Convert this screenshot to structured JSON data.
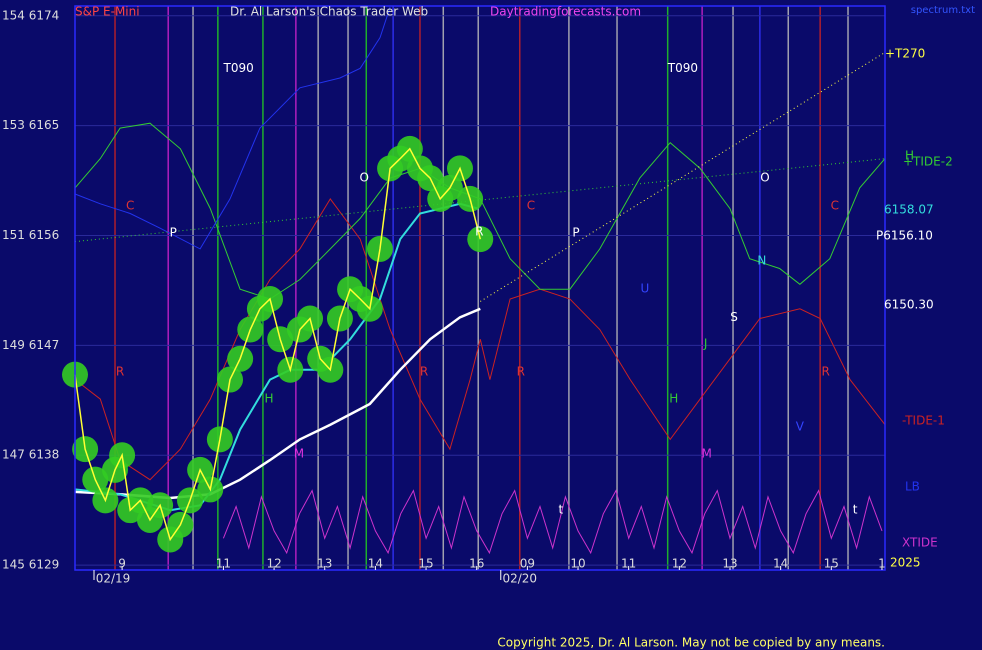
{
  "chart_data": {
    "type": "line",
    "title": "S&P E-Mini",
    "subtitle": "Dr. Al Larson's Chaos Trader Web",
    "site": "Daytradingforecasts.com",
    "source_file": "spectrum.txt",
    "copyright": "Copyright 2025, Dr. Al Larson. May not be copied by any means.",
    "xlim": [
      0.07,
      16.06
    ],
    "ylim": [
      6128.6,
      6174.8
    ],
    "grid": true,
    "yticks": [
      {
        "value": 6174,
        "label": "154 6174"
      },
      {
        "value": 6165,
        "label": "153 6165"
      },
      {
        "value": 6156,
        "label": "151 6156"
      },
      {
        "value": 6147,
        "label": "149 6147"
      },
      {
        "value": 6138,
        "label": "147 6138"
      },
      {
        "value": 6129,
        "label": "145 6129"
      }
    ],
    "xticks": [
      {
        "value": 1,
        "label": "9"
      },
      {
        "value": 3,
        "label": "11"
      },
      {
        "value": 4,
        "label": "12"
      },
      {
        "value": 5,
        "label": "13"
      },
      {
        "value": 6,
        "label": "14"
      },
      {
        "value": 7,
        "label": "15"
      },
      {
        "value": 8,
        "label": "16"
      },
      {
        "value": 9,
        "label": "09"
      },
      {
        "value": 10,
        "label": "10"
      },
      {
        "value": 11,
        "label": "11"
      },
      {
        "value": 12,
        "label": "12"
      },
      {
        "value": 13,
        "label": "13"
      },
      {
        "value": 14,
        "label": "14"
      },
      {
        "value": 15,
        "label": "15"
      },
      {
        "value": 16,
        "label": "1"
      }
    ],
    "date_labels": [
      {
        "label": "02/19",
        "x": 0.82
      },
      {
        "label": "02/20",
        "x": 8.85
      }
    ],
    "vlines": [
      {
        "x": 0.86,
        "color": "#cc2222"
      },
      {
        "x": 1.91,
        "color": "#cc22cc"
      },
      {
        "x": 2.4,
        "color": "#bbbbbb"
      },
      {
        "x": 2.89,
        "color": "#22cc22"
      },
      {
        "x": 3.78,
        "color": "#22cc22"
      },
      {
        "x": 4.43,
        "color": "#cc22cc"
      },
      {
        "x": 4.87,
        "color": "#bbbbbb"
      },
      {
        "x": 5.46,
        "color": "#bbbbbb"
      },
      {
        "x": 5.82,
        "color": "#22cc22"
      },
      {
        "x": 6.35,
        "color": "#3333ff"
      },
      {
        "x": 6.88,
        "color": "#cc2222"
      },
      {
        "x": 7.34,
        "color": "#bbbbbb"
      },
      {
        "x": 8.03,
        "color": "#bbbbbb"
      },
      {
        "x": 8.85,
        "color": "#cc2222"
      },
      {
        "x": 9.82,
        "color": "#bbbbbb"
      },
      {
        "x": 10.77,
        "color": "#bbbbbb"
      },
      {
        "x": 11.77,
        "color": "#22cc22"
      },
      {
        "x": 12.45,
        "color": "#cc22cc"
      },
      {
        "x": 13.06,
        "color": "#bbbbbb"
      },
      {
        "x": 13.59,
        "color": "#3333ff"
      },
      {
        "x": 14.15,
        "color": "#bbbbbb"
      },
      {
        "x": 14.78,
        "color": "#cc2222"
      },
      {
        "x": 15.33,
        "color": "#bbbbbb"
      }
    ],
    "series": [
      {
        "name": "-TIDE-1",
        "color": "#cc2222",
        "x": [
          0.07,
          0.57,
          0.96,
          1.55,
          2.15,
          2.74,
          3.33,
          3.92,
          4.51,
          5.11,
          5.7,
          6.29,
          6.88,
          7.47,
          7.87,
          8.07,
          8.26,
          8.66,
          9.25,
          9.84,
          10.43,
          11.03,
          11.82,
          12.41,
          13.0,
          13.59,
          14.38,
          14.78,
          15.37,
          16.06
        ],
        "values": [
          6144.2,
          6142.6,
          6137.6,
          6136.0,
          6138.5,
          6142.6,
          6148.3,
          6152.4,
          6154.9,
          6159.0,
          6155.7,
          6148.3,
          6142.6,
          6138.5,
          6144.2,
          6147.5,
          6144.2,
          6150.8,
          6151.6,
          6150.8,
          6148.3,
          6144.2,
          6139.3,
          6142.6,
          6145.9,
          6149.2,
          6150.0,
          6149.2,
          6144.2,
          6140.5
        ]
      },
      {
        "name": "+TIDE-2",
        "color": "#33cc33",
        "x": [
          0.07,
          0.57,
          0.96,
          1.55,
          2.15,
          2.74,
          3.33,
          3.92,
          4.51,
          5.11,
          5.7,
          6.29,
          6.88,
          7.47,
          8.07,
          8.66,
          9.25,
          9.84,
          10.43,
          11.22,
          11.82,
          12.41,
          13.0,
          13.39,
          13.98,
          14.38,
          14.97,
          15.56,
          16.06
        ],
        "values": [
          6159.9,
          6162.3,
          6164.8,
          6165.2,
          6163.1,
          6158.2,
          6151.6,
          6150.8,
          6152.4,
          6154.9,
          6157.4,
          6160.7,
          6161.5,
          6159.9,
          6159.0,
          6154.1,
          6151.6,
          6151.6,
          6154.9,
          6160.7,
          6163.6,
          6161.5,
          6158.2,
          6154.1,
          6153.3,
          6152.0,
          6154.1,
          6159.9,
          6162.3
        ]
      },
      {
        "name": "LB",
        "color": "#2233ee",
        "x": [
          0.07,
          0.57,
          1.16,
          1.75,
          2.54,
          3.13,
          3.72,
          4.51,
          5.3,
          5.7,
          6.09,
          6.29
        ],
        "values": [
          6159.4,
          6158.6,
          6157.8,
          6156.6,
          6154.9,
          6159.0,
          6164.8,
          6168.1,
          6168.9,
          6169.7,
          6172.2,
          6174.7
        ]
      },
      {
        "name": "XTIDE",
        "color": "#cc33cc",
        "x": [
          3.0,
          3.25,
          3.5,
          3.75,
          4.0,
          4.25,
          4.5,
          4.75,
          5.0,
          5.25,
          5.5,
          5.75,
          6.0,
          6.25,
          6.5,
          6.75,
          7.0,
          7.25,
          7.5,
          7.75,
          8.0,
          8.25,
          8.5,
          8.75,
          9.0,
          9.25,
          9.5,
          9.75,
          10.0,
          10.25,
          10.5,
          10.75,
          11.0,
          11.25,
          11.5,
          11.75,
          12.0,
          12.25,
          12.5,
          12.75,
          13.0,
          13.25,
          13.5,
          13.75,
          14.0,
          14.25,
          14.5,
          14.75,
          15.0,
          15.25,
          15.5,
          15.75,
          16.0
        ],
        "values": [
          6131.2,
          6133.8,
          6130.4,
          6134.6,
          6131.8,
          6130.0,
          6133.2,
          6135.1,
          6131.2,
          6133.8,
          6130.4,
          6134.6,
          6131.8,
          6130.0,
          6133.2,
          6135.1,
          6131.2,
          6133.8,
          6130.4,
          6134.6,
          6131.8,
          6130.0,
          6133.2,
          6135.1,
          6131.2,
          6133.8,
          6130.4,
          6134.6,
          6131.8,
          6130.0,
          6133.2,
          6135.1,
          6131.2,
          6133.8,
          6130.4,
          6134.6,
          6131.8,
          6130.0,
          6133.2,
          6135.1,
          6131.2,
          6133.8,
          6130.4,
          6134.6,
          6131.8,
          6130.0,
          6133.2,
          6135.1,
          6131.2,
          6133.8,
          6130.4,
          6134.6,
          6131.8
        ]
      },
      {
        "name": "+T270",
        "color": "#ffff44",
        "style": "dotted",
        "x": [
          8.07,
          16.06
        ],
        "values": [
          6150.6,
          6171.0
        ]
      },
      {
        "name": "H",
        "color": "#33cc33",
        "style": "dotted",
        "x": [
          0.07,
          16.06
        ],
        "values": [
          6155.5,
          6162.3
        ]
      },
      {
        "name": "6150.30",
        "color": "#ffffff",
        "width": 2.5,
        "x": [
          0.07,
          0.96,
          1.95,
          2.74,
          3.33,
          3.92,
          4.51,
          5.11,
          5.89,
          6.49,
          7.08,
          7.67,
          8.07
        ],
        "values": [
          6135.0,
          6134.8,
          6134.5,
          6134.8,
          6136.0,
          6137.6,
          6139.3,
          6140.5,
          6142.2,
          6145.0,
          6147.5,
          6149.3,
          6150.0
        ]
      },
      {
        "name": "6158.07",
        "color": "#33dddd",
        "width": 2,
        "x": [
          0.07,
          0.96,
          1.95,
          2.54,
          2.93,
          3.33,
          3.92,
          4.32,
          4.91,
          5.5,
          6.09,
          6.49,
          6.88,
          7.28,
          7.67,
          8.03
        ],
        "values": [
          6135.2,
          6134.8,
          6133.5,
          6133.9,
          6136.0,
          6140.1,
          6144.2,
          6145.0,
          6145.0,
          6147.5,
          6150.8,
          6155.7,
          6157.8,
          6158.2,
          6158.6,
          6158.2
        ]
      },
      {
        "name": "P6156.10",
        "color": "#ffff33",
        "halo": "#33cc22",
        "width": 1.5,
        "x": [
          0.07,
          0.27,
          0.47,
          0.67,
          0.86,
          1.0,
          1.16,
          1.36,
          1.55,
          1.75,
          1.95,
          2.15,
          2.34,
          2.54,
          2.74,
          2.93,
          3.13,
          3.33,
          3.53,
          3.72,
          3.92,
          4.12,
          4.32,
          4.51,
          4.71,
          4.91,
          5.11,
          5.3,
          5.5,
          5.7,
          5.89,
          6.09,
          6.29,
          6.49,
          6.68,
          6.88,
          7.08,
          7.28,
          7.47,
          7.67,
          7.87,
          8.07
        ],
        "values": [
          6144.6,
          6138.5,
          6136.0,
          6134.3,
          6136.8,
          6138.0,
          6133.5,
          6134.3,
          6132.7,
          6133.9,
          6131.1,
          6132.3,
          6134.3,
          6136.8,
          6135.2,
          6139.3,
          6144.2,
          6145.9,
          6148.3,
          6150.0,
          6150.8,
          6147.5,
          6145.0,
          6148.3,
          6149.2,
          6145.9,
          6145.0,
          6149.2,
          6151.6,
          6150.8,
          6150.0,
          6154.9,
          6161.5,
          6162.3,
          6163.1,
          6161.5,
          6160.7,
          6159.0,
          6159.9,
          6161.5,
          6159.0,
          6155.7
        ]
      }
    ],
    "annotations": [
      {
        "text": "T090",
        "x": 3.3,
        "y": 6169.7,
        "color": "#ffffff"
      },
      {
        "text": "T090",
        "x": 12.07,
        "y": 6169.7,
        "color": "#ffffff"
      },
      {
        "text": "C",
        "x": 1.16,
        "y": 6158.4,
        "color": "#dd3333"
      },
      {
        "text": "P",
        "x": 2.01,
        "y": 6156.2,
        "color": "#ffffff"
      },
      {
        "text": "O",
        "x": 5.78,
        "y": 6160.7,
        "color": "#ffffff"
      },
      {
        "text": "R",
        "x": 0.96,
        "y": 6144.8,
        "color": "#dd3333"
      },
      {
        "text": "H",
        "x": 3.9,
        "y": 6142.6,
        "color": "#33cc33"
      },
      {
        "text": "M",
        "x": 4.49,
        "y": 6138.1,
        "color": "#dd33dd"
      },
      {
        "text": "R",
        "x": 6.96,
        "y": 6144.8,
        "color": "#dd3333"
      },
      {
        "text": "R",
        "x": 8.05,
        "y": 6156.3,
        "color": "#ffffff"
      },
      {
        "text": "R",
        "x": 8.87,
        "y": 6144.8,
        "color": "#dd3333"
      },
      {
        "text": "C",
        "x": 9.07,
        "y": 6158.4,
        "color": "#dd3333"
      },
      {
        "text": "P",
        "x": 9.96,
        "y": 6156.2,
        "color": "#ffffff"
      },
      {
        "text": "U",
        "x": 11.32,
        "y": 6151.6,
        "color": "#3344ff"
      },
      {
        "text": "H",
        "x": 11.89,
        "y": 6142.6,
        "color": "#33cc33"
      },
      {
        "text": "M",
        "x": 12.54,
        "y": 6138.1,
        "color": "#dd33dd"
      },
      {
        "text": "J",
        "x": 12.52,
        "y": 6147.1,
        "color": "#33cc33"
      },
      {
        "text": "S",
        "x": 13.08,
        "y": 6149.3,
        "color": "#ffffff"
      },
      {
        "text": "O",
        "x": 13.69,
        "y": 6160.7,
        "color": "#ffffff"
      },
      {
        "text": "N",
        "x": 13.63,
        "y": 6153.9,
        "color": "#33dddd"
      },
      {
        "text": "R",
        "x": 14.89,
        "y": 6144.8,
        "color": "#dd3333"
      },
      {
        "text": "C",
        "x": 15.07,
        "y": 6158.4,
        "color": "#dd3333"
      },
      {
        "text": "V",
        "x": 14.38,
        "y": 6140.3,
        "color": "#3344ff"
      },
      {
        "text": "t",
        "x": 9.66,
        "y": 6133.5,
        "color": "#ffffff"
      },
      {
        "text": "t",
        "x": 15.47,
        "y": 6133.5,
        "color": "#ffffff"
      }
    ],
    "year": "2025"
  }
}
